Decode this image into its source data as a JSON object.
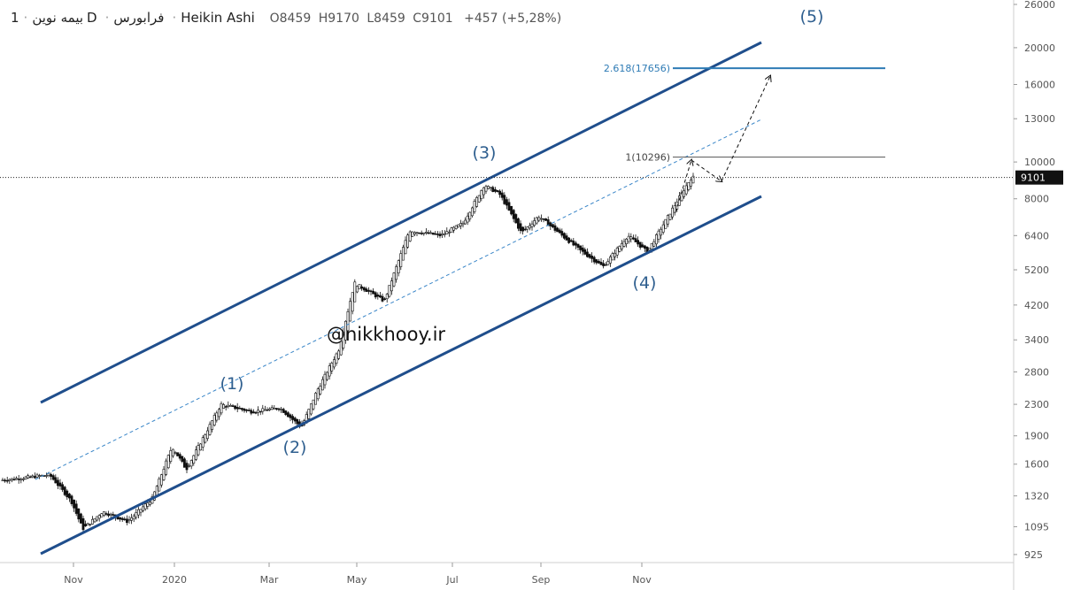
{
  "header": {
    "symbol": "بیمه نوین",
    "interval": "1D",
    "exchange": "فرابورس",
    "style": "Heikin Ashi",
    "o_label": "O",
    "o_value": "8459",
    "h_label": "H",
    "h_value": "9170",
    "l_label": "L",
    "l_value": "8459",
    "c_label": "C",
    "c_value": "9101",
    "change": "+457 (+5,28%)"
  },
  "price_tag": "9101",
  "watermark": "@nikkhooy.ir",
  "colors": {
    "channel": "#1f4e8c",
    "midline": "#3a86c8",
    "fib_blue": "#2e7bb5",
    "fib_gray": "#555555",
    "up_candle": "#ffffff",
    "down_candle": "#111111",
    "wave_label": "#2f5f8f"
  },
  "chart_data": {
    "type": "candlestick",
    "style": "Heikin Ashi",
    "y_scale": "log",
    "ylim": [
      900,
      26000
    ],
    "y_ticks": [
      925,
      1095,
      1320,
      1600,
      1900,
      2300,
      2800,
      3400,
      4200,
      5200,
      6400,
      8000,
      10000,
      13000,
      16000,
      20000,
      26000
    ],
    "x_ticks": [
      "Nov",
      "2020",
      "Mar",
      "May",
      "Jul",
      "Sep",
      "Nov"
    ],
    "last_close": 9101,
    "wave_labels": [
      "(1)",
      "(2)",
      "(3)",
      "(4)",
      "(5)"
    ],
    "fib_levels": [
      {
        "label": "2.618(17656)",
        "value": 17656
      },
      {
        "label": "1(10296)",
        "value": 10296
      }
    ],
    "price_path": [
      {
        "date": "2019-10",
        "price": 1450
      },
      {
        "date": "2019-10-20",
        "price": 1500
      },
      {
        "date": "2019-11-01",
        "price": 1280
      },
      {
        "date": "2019-11-08",
        "price": 1080
      },
      {
        "date": "2019-11-20",
        "price": 1200
      },
      {
        "date": "2019-12-05",
        "price": 1130
      },
      {
        "date": "2019-12-20",
        "price": 1300
      },
      {
        "date": "2020-01-01",
        "price": 1780
      },
      {
        "date": "2020-01-10",
        "price": 1550
      },
      {
        "date": "2020-02-01",
        "price": 2300
      },
      {
        "date": "2020-02-20",
        "price": 2200
      },
      {
        "date": "2020-03-10",
        "price": 2250
      },
      {
        "date": "2020-03-25",
        "price": 2000
      },
      {
        "date": "2020-04-05",
        "price": 2500
      },
      {
        "date": "2020-04-20",
        "price": 3200
      },
      {
        "date": "2020-05-01",
        "price": 4800
      },
      {
        "date": "2020-05-20",
        "price": 4300
      },
      {
        "date": "2020-06-05",
        "price": 6600
      },
      {
        "date": "2020-06-25",
        "price": 6400
      },
      {
        "date": "2020-07-10",
        "price": 6900
      },
      {
        "date": "2020-07-25",
        "price": 8700
      },
      {
        "date": "2020-08-05",
        "price": 8200
      },
      {
        "date": "2020-08-20",
        "price": 6500
      },
      {
        "date": "2020-09-01",
        "price": 7200
      },
      {
        "date": "2020-09-25",
        "price": 5900
      },
      {
        "date": "2020-10-10",
        "price": 5300
      },
      {
        "date": "2020-10-25",
        "price": 6400
      },
      {
        "date": "2020-11-05",
        "price": 5800
      },
      {
        "date": "2020-11-20",
        "price": 7800
      },
      {
        "date": "2020-11-28",
        "price": 9101
      }
    ]
  }
}
